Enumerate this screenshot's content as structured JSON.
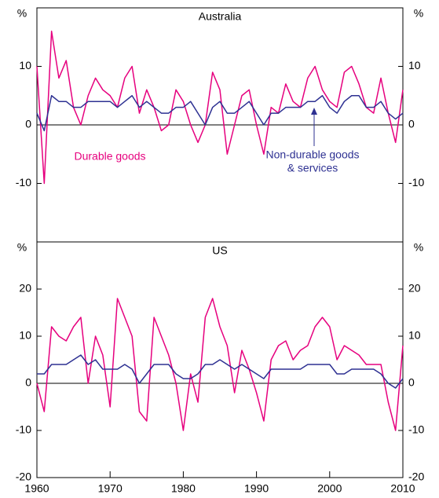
{
  "chart_data": [
    {
      "type": "line",
      "title": "Australia",
      "y_unit": "%",
      "x": [
        1960,
        1961,
        1962,
        1963,
        1964,
        1965,
        1966,
        1967,
        1968,
        1969,
        1970,
        1971,
        1972,
        1973,
        1974,
        1975,
        1976,
        1977,
        1978,
        1979,
        1980,
        1981,
        1982,
        1983,
        1984,
        1985,
        1986,
        1987,
        1988,
        1989,
        1990,
        1991,
        1992,
        1993,
        1994,
        1995,
        1996,
        1997,
        1998,
        1999,
        2000,
        2001,
        2002,
        2003,
        2004,
        2005,
        2006,
        2007,
        2008,
        2009,
        2010
      ],
      "series": [
        {
          "color": "#e6007e",
          "values": [
            10,
            -10,
            16,
            8,
            11,
            3,
            0,
            5,
            8,
            6,
            5,
            3,
            8,
            10,
            2,
            6,
            3,
            -1,
            0,
            6,
            4,
            0,
            -3,
            0,
            9,
            6,
            -5,
            0,
            5,
            6,
            0,
            -5,
            3,
            2,
            7,
            4,
            3,
            8,
            10,
            6,
            4,
            3,
            9,
            10,
            7,
            3,
            2,
            8,
            2,
            -3,
            6
          ]
        },
        {
          "color": "#2e3192",
          "values": [
            2,
            -1,
            5,
            4,
            4,
            3,
            3,
            4,
            4,
            4,
            4,
            3,
            4,
            5,
            3,
            4,
            3,
            2,
            2,
            3,
            3,
            4,
            2,
            0,
            3,
            4,
            2,
            2,
            3,
            4,
            2,
            0,
            2,
            2,
            3,
            3,
            3,
            4,
            4,
            5,
            3,
            2,
            4,
            5,
            5,
            3,
            3,
            4,
            2,
            1,
            2
          ]
        }
      ],
      "annotations": [
        "Durable goods",
        "Non-durable goods",
        "& services"
      ],
      "xlim": [
        1960,
        2010
      ],
      "ylim": [
        -20,
        20
      ],
      "yticks": [
        -10,
        0,
        10
      ]
    },
    {
      "type": "line",
      "title": "US",
      "y_unit": "%",
      "x": [
        1960,
        1961,
        1962,
        1963,
        1964,
        1965,
        1966,
        1967,
        1968,
        1969,
        1970,
        1971,
        1972,
        1973,
        1974,
        1975,
        1976,
        1977,
        1978,
        1979,
        1980,
        1981,
        1982,
        1983,
        1984,
        1985,
        1986,
        1987,
        1988,
        1989,
        1990,
        1991,
        1992,
        1993,
        1994,
        1995,
        1996,
        1997,
        1998,
        1999,
        2000,
        2001,
        2002,
        2003,
        2004,
        2005,
        2006,
        2007,
        2008,
        2009,
        2010
      ],
      "series": [
        {
          "color": "#e6007e",
          "values": [
            0,
            -6,
            12,
            10,
            9,
            12,
            14,
            0,
            10,
            6,
            -5,
            18,
            14,
            10,
            -6,
            -8,
            14,
            10,
            6,
            0,
            -10,
            2,
            -4,
            14,
            18,
            12,
            8,
            -2,
            7,
            3,
            -2,
            -8,
            5,
            8,
            9,
            5,
            7,
            8,
            12,
            14,
            12,
            5,
            8,
            7,
            6,
            4,
            4,
            4,
            -4,
            -10,
            8
          ]
        },
        {
          "color": "#2e3192",
          "values": [
            2,
            2,
            4,
            4,
            4,
            5,
            6,
            4,
            5,
            3,
            3,
            3,
            4,
            3,
            0,
            2,
            4,
            4,
            4,
            2,
            1,
            1,
            2,
            4,
            4,
            5,
            4,
            3,
            4,
            3,
            2,
            1,
            3,
            3,
            3,
            3,
            3,
            4,
            4,
            4,
            4,
            2,
            2,
            3,
            3,
            3,
            3,
            2,
            0,
            -1,
            1
          ]
        }
      ],
      "xlim": [
        1960,
        2010
      ],
      "ylim": [
        -20,
        30
      ],
      "yticks": [
        -20,
        -10,
        0,
        10,
        20
      ],
      "xticks": [
        1960,
        1970,
        1980,
        1990,
        2000,
        2010
      ]
    }
  ]
}
